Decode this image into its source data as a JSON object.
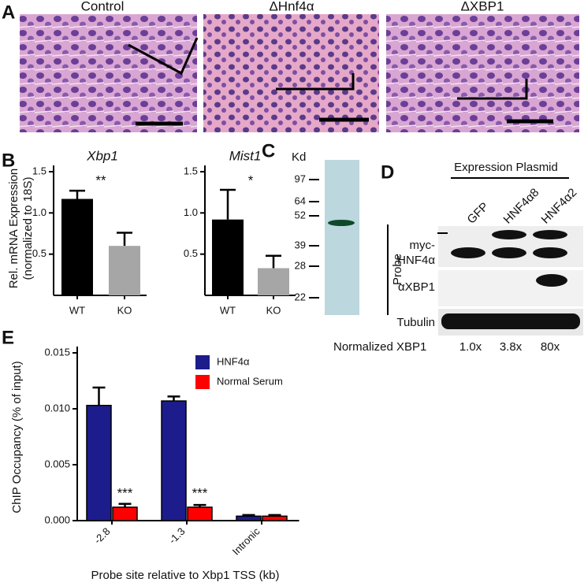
{
  "figure": {
    "panel_letters": [
      "A",
      "B",
      "C",
      "D",
      "E"
    ],
    "panel_a": {
      "titles": [
        "Control",
        "ΔHnf4α",
        "ΔXBP1"
      ]
    },
    "panel_c": {
      "unit_label": "Kd",
      "markers": [
        97,
        64,
        52,
        39,
        28,
        22
      ]
    },
    "panel_d": {
      "header": "Expression Plasmid",
      "lanes": [
        "GFP",
        "HNF4α8",
        "HNF4α2"
      ],
      "probe_label": "Probe",
      "rows": [
        [
          "myc-",
          "HNF4α"
        ],
        [
          "αXBP1"
        ],
        [
          "Tubulin"
        ]
      ],
      "quant_label": "Normalized XBP1",
      "quant_values": [
        "1.0x",
        "3.8x",
        "80x"
      ]
    }
  },
  "chart_data": [
    {
      "type": "bar",
      "title": "Xbp1",
      "y_label": [
        "Rel. mRNA Expression",
        "(normalized to 18S)"
      ],
      "categories": [
        "WT",
        "KO"
      ],
      "values": [
        1.17,
        0.6
      ],
      "errors": [
        0.1,
        0.16
      ],
      "colors": [
        "#000000",
        "#a6a6a6"
      ],
      "ylim": [
        0,
        1.5
      ],
      "yticks": [
        0.5,
        {
          "value": 1,
          "label": "1.0"
        },
        1.5
      ],
      "annotation": "**"
    },
    {
      "type": "bar",
      "title": "Mist1",
      "categories": [
        "WT",
        "KO"
      ],
      "values": [
        0.92,
        0.33
      ],
      "errors": [
        0.36,
        0.15
      ],
      "colors": [
        "#000000",
        "#a6a6a6"
      ],
      "ylim": [
        0,
        1.5
      ],
      "yticks": [
        0.5,
        {
          "value": 1,
          "label": "1.0"
        },
        1.5
      ],
      "annotation": "*"
    },
    {
      "type": "grouped-bar",
      "y_label": "ChIP Occupancy (% of input)",
      "x_label": "Probe site relative to Xbp1 TSS (kb)",
      "categories": [
        "-2.8",
        "-1.3",
        "Intronic"
      ],
      "series": [
        {
          "name": "HNF4α",
          "color": "#1c1c8c",
          "values": [
            0.0103,
            0.0107,
            0.0004
          ],
          "errors": [
            0.0016,
            0.0004,
            0.0001
          ]
        },
        {
          "name": "Normal Serum",
          "color": "#ff0000",
          "values": [
            0.0012,
            0.0012,
            0.0004
          ],
          "errors": [
            0.0003,
            0.0002,
            0.0001
          ]
        }
      ],
      "annotations": [
        "***",
        "***",
        null
      ],
      "ylim": [
        0,
        0.015
      ],
      "yticks": [
        {
          "value": 0,
          "label": "0.000"
        },
        {
          "value": 0.005,
          "label": "0.005"
        },
        {
          "value": 0.01,
          "label": "0.010"
        },
        {
          "value": 0.015,
          "label": "0.015"
        }
      ],
      "legend": "top-right"
    }
  ]
}
